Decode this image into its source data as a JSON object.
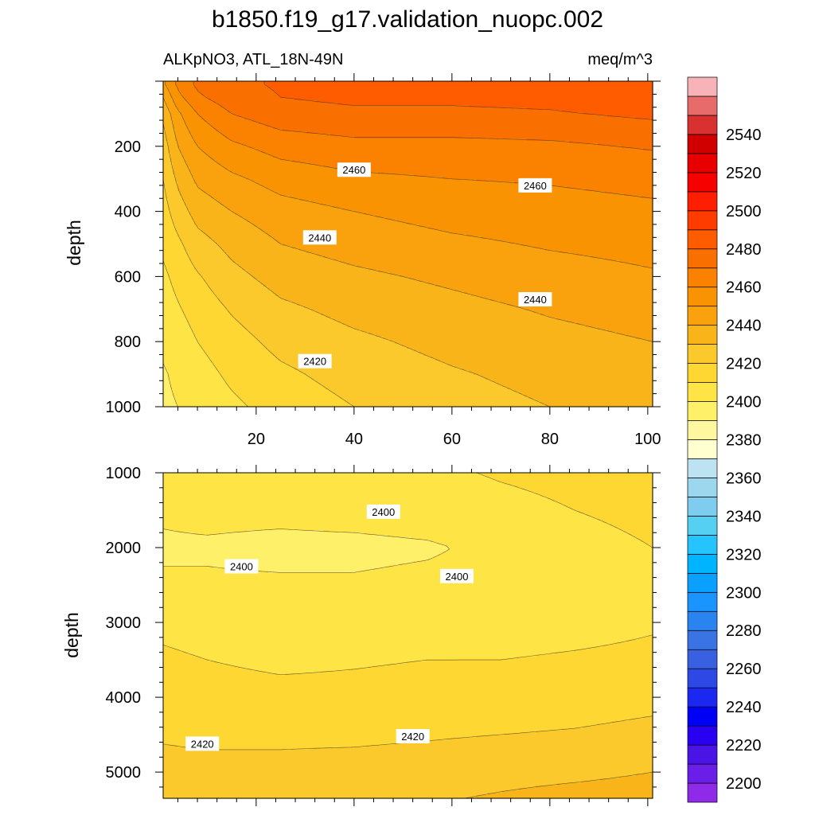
{
  "title": "b1850.f19_g17.validation_nuopc.002",
  "subtitle_left": "ALKpNO3, ATL_18N-49N",
  "subtitle_right": "meq/m^3",
  "chart_data": [
    {
      "type": "heatmap",
      "panel": "upper",
      "ylabel": "depth",
      "xlabel": "",
      "xlim": [
        1,
        101
      ],
      "ylim": [
        0,
        1000
      ],
      "y_reversed": true,
      "x_ticks": [
        20,
        40,
        60,
        80,
        100
      ],
      "x_tick_labels": [
        "20",
        "40",
        "60",
        "80",
        "100"
      ],
      "y_ticks": [
        200,
        400,
        600,
        800,
        1000
      ],
      "y_tick_labels": [
        "200",
        "400",
        "600",
        "800",
        "1000"
      ],
      "x": [
        1,
        4,
        8,
        15,
        25,
        40,
        60,
        80,
        101
      ],
      "y": [
        10,
        50,
        100,
        200,
        300,
        400,
        500,
        600,
        700,
        800,
        900,
        1000
      ],
      "z": [
        [
          2448,
          2462,
          2472,
          2478,
          2481,
          2483,
          2483,
          2484,
          2485
        ],
        [
          2440,
          2457,
          2468,
          2476,
          2480,
          2482,
          2482,
          2483,
          2485
        ],
        [
          2432,
          2448,
          2460,
          2470,
          2476,
          2478,
          2478,
          2479,
          2482
        ],
        [
          2425,
          2440,
          2450,
          2458,
          2464,
          2467,
          2467,
          2468,
          2471
        ],
        [
          2420,
          2432,
          2442,
          2448,
          2454,
          2458,
          2460,
          2461,
          2463
        ],
        [
          2416,
          2425,
          2434,
          2440,
          2446,
          2450,
          2454,
          2456,
          2458
        ],
        [
          2412,
          2418,
          2426,
          2433,
          2440,
          2444,
          2448,
          2451,
          2453
        ],
        [
          2408,
          2413,
          2419,
          2427,
          2434,
          2438,
          2442,
          2446,
          2449
        ],
        [
          2405,
          2409,
          2414,
          2421,
          2428,
          2433,
          2437,
          2441,
          2444
        ],
        [
          2402,
          2405,
          2410,
          2416,
          2423,
          2428,
          2433,
          2437,
          2440
        ],
        [
          2399,
          2402,
          2406,
          2412,
          2418,
          2424,
          2429,
          2433,
          2437
        ],
        [
          2398,
          2400,
          2403,
          2408,
          2414,
          2420,
          2426,
          2430,
          2434
        ]
      ],
      "contour_labels": [
        {
          "text": "2460",
          "x": 40,
          "y": 272
        },
        {
          "text": "2460",
          "x": 77,
          "y": 320
        },
        {
          "text": "2440",
          "x": 33,
          "y": 480
        },
        {
          "text": "2440",
          "x": 77,
          "y": 670
        },
        {
          "text": "2420",
          "x": 32,
          "y": 860
        }
      ]
    },
    {
      "type": "heatmap",
      "panel": "lower",
      "ylabel": "depth",
      "xlabel": "",
      "xlim": [
        1,
        101
      ],
      "ylim": [
        1000,
        5350
      ],
      "y_reversed": true,
      "x_ticks": [
        20,
        40,
        60,
        80,
        100
      ],
      "y_ticks": [
        1000,
        2000,
        3000,
        4000,
        5000
      ],
      "y_tick_labels": [
        "1000",
        "2000",
        "3000",
        "4000",
        "5000"
      ],
      "x": [
        1,
        10,
        25,
        40,
        55,
        70,
        85,
        101
      ],
      "y": [
        1000,
        1500,
        2000,
        2500,
        3000,
        3500,
        4000,
        4500,
        5000,
        5350
      ],
      "z": [
        [
          2402,
          2404,
          2405,
          2406,
          2408,
          2411,
          2413,
          2416
        ],
        [
          2401,
          2402,
          2402,
          2403,
          2404,
          2407,
          2410,
          2413
        ],
        [
          2399,
          2399,
          2398,
          2398,
          2399,
          2402,
          2406,
          2410
        ],
        [
          2401,
          2401,
          2401,
          2401,
          2402,
          2403,
          2405,
          2408
        ],
        [
          2407,
          2405,
          2404,
          2404,
          2405,
          2406,
          2407,
          2409
        ],
        [
          2412,
          2410,
          2408,
          2409,
          2410,
          2410,
          2411,
          2412
        ],
        [
          2415,
          2414,
          2413,
          2413,
          2414,
          2414,
          2415,
          2417
        ],
        [
          2419,
          2418,
          2418,
          2418,
          2419,
          2420,
          2421,
          2423
        ],
        [
          2423,
          2423,
          2423,
          2424,
          2425,
          2427,
          2428,
          2430
        ],
        [
          2426,
          2426,
          2427,
          2428,
          2429,
          2431,
          2433,
          2434
        ]
      ],
      "contour_labels": [
        {
          "text": "2400",
          "x": 46,
          "y": 1520
        },
        {
          "text": "2400",
          "x": 17,
          "y": 2250
        },
        {
          "text": "2400",
          "x": 61,
          "y": 2380
        },
        {
          "text": "2420",
          "x": 9,
          "y": 4620
        },
        {
          "text": "2420",
          "x": 52,
          "y": 4520
        }
      ]
    }
  ],
  "colorbar": {
    "levels": [
      2190,
      2200,
      2210,
      2220,
      2230,
      2240,
      2250,
      2260,
      2270,
      2280,
      2290,
      2300,
      2310,
      2320,
      2330,
      2340,
      2350,
      2360,
      2370,
      2380,
      2390,
      2400,
      2410,
      2420,
      2430,
      2440,
      2450,
      2460,
      2470,
      2480,
      2490,
      2500,
      2510,
      2520,
      2530,
      2540,
      2550,
      2560
    ],
    "colors": [
      "#8e2ae8",
      "#6a1ee8",
      "#4a14e6",
      "#2a00f0",
      "#0000f5",
      "#1a28f0",
      "#2e48e6",
      "#3860e0",
      "#3a74e4",
      "#2a84f0",
      "#1a94ff",
      "#0aa0ff",
      "#00b4ff",
      "#25c4ff",
      "#55d0f2",
      "#7ecdf0",
      "#9cd7ee",
      "#bde3f2",
      "#ffffd0",
      "#fff6a0",
      "#fff06a",
      "#fee444",
      "#fed733",
      "#fbc92b",
      "#f8b418",
      "#f9a20e",
      "#f99302",
      "#fa8200",
      "#fa7000",
      "#ff5c00",
      "#ff3c00",
      "#ff1e00",
      "#f70000",
      "#e80000",
      "#d00000",
      "#d93030",
      "#e86b6b",
      "#f8b3b8"
    ],
    "tick_labels": [
      "2200",
      "2220",
      "2240",
      "2260",
      "2280",
      "2300",
      "2320",
      "2340",
      "2360",
      "2380",
      "2400",
      "2420",
      "2440",
      "2460",
      "2480",
      "2500",
      "2520",
      "2540"
    ]
  }
}
